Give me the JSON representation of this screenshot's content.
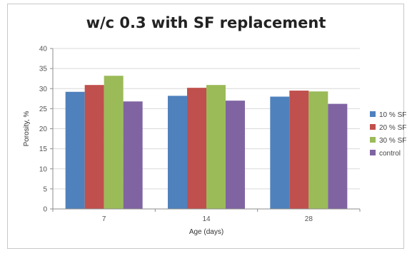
{
  "chart_data": {
    "type": "bar",
    "title": "w/c 0.3 with SF replacement",
    "xlabel": "Age (days)",
    "ylabel": "Porosity, %",
    "categories": [
      "7",
      "14",
      "28"
    ],
    "ylim": [
      0,
      40
    ],
    "yticks": [
      0,
      5,
      10,
      15,
      20,
      25,
      30,
      35,
      40
    ],
    "grid": true,
    "legend_position": "right",
    "series": [
      {
        "name": "10 % SF",
        "color": "#4f81bd",
        "values": [
          29.2,
          28.2,
          28.0
        ]
      },
      {
        "name": "20 % SF",
        "color": "#c0504d",
        "values": [
          30.9,
          30.2,
          29.5
        ]
      },
      {
        "name": "30 % SF",
        "color": "#9bbb59",
        "values": [
          33.2,
          30.9,
          29.3
        ]
      },
      {
        "name": "control",
        "color": "#8064a2",
        "values": [
          26.8,
          27.0,
          26.2
        ]
      }
    ]
  }
}
